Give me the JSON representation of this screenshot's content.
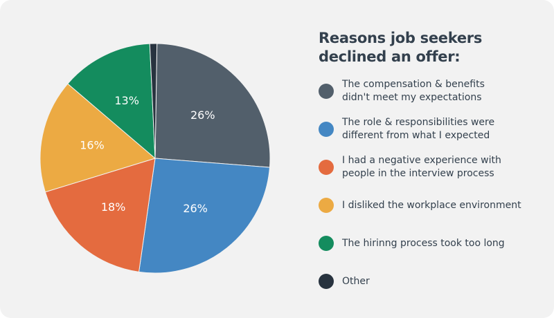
{
  "chart_data": {
    "type": "pie",
    "title": "Reasons job seekers declined an offer:",
    "slices": [
      {
        "label": "The compensation & benefits didn't meet my expectations",
        "value": 26,
        "display": "26%",
        "color": "#525f6b"
      },
      {
        "label": "The role & responsibilities were different from what I expected",
        "value": 26,
        "display": "26%",
        "color": "#4487c3"
      },
      {
        "label": "I had a negative experience with people in the interview process",
        "value": 18,
        "display": "18%",
        "color": "#e46b3f"
      },
      {
        "label": "I disliked the workplace environment",
        "value": 16,
        "display": "16%",
        "color": "#ecaa43"
      },
      {
        "label": "The hirinng process took too long",
        "value": 13,
        "display": "13%",
        "color": "#148c5e"
      },
      {
        "label": "Other",
        "value": 1,
        "display": "",
        "color": "#28333f"
      }
    ],
    "legend_position": "right"
  },
  "title_lines": [
    "Reasons job seekers",
    "declined an offer:"
  ],
  "legend": [
    {
      "line1": "The compensation & benefits",
      "line2": "didn't meet my expectations",
      "color": "#525f6b"
    },
    {
      "line1": "The role & responsibilities were",
      "line2": "different from what I expected",
      "color": "#4487c3"
    },
    {
      "line1": "I had a negative experience with",
      "line2": "people in the interview process",
      "color": "#e46b3f"
    },
    {
      "line1": "I disliked the workplace environment",
      "line2": "",
      "color": "#ecaa43"
    },
    {
      "line1": "The hirinng process took too long",
      "line2": "",
      "color": "#148c5e"
    },
    {
      "line1": "Other",
      "line2": "",
      "color": "#28333f"
    }
  ]
}
